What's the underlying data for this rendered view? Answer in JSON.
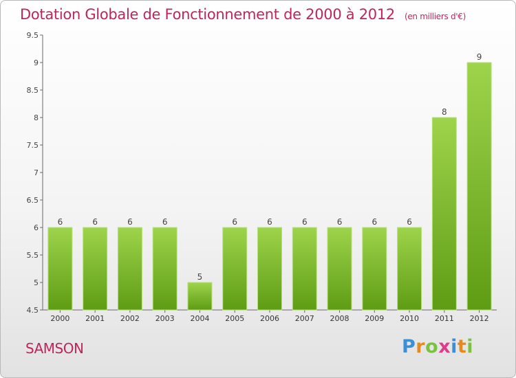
{
  "header": {
    "title": "Dotation Globale de Fonctionnement de 2000 à 2012",
    "unit": "(en milliers d'€)"
  },
  "footer": {
    "commune": "SAMSON",
    "logo_letters": [
      "P",
      "r",
      "o",
      "x",
      "i",
      "t",
      "i"
    ],
    "logo_colors": [
      "#3b8ed8",
      "#e48a1e",
      "#7cc242",
      "#e03a8a",
      "#3b8ed8",
      "#e48a1e",
      "#7cc242"
    ]
  },
  "chart_data": {
    "type": "bar",
    "title": "Dotation Globale de Fonctionnement de 2000 à 2012",
    "xlabel": "",
    "ylabel": "",
    "categories": [
      "2000",
      "2001",
      "2002",
      "2003",
      "2004",
      "2005",
      "2006",
      "2007",
      "2008",
      "2009",
      "2010",
      "2011",
      "2012"
    ],
    "values": [
      6,
      6,
      6,
      6,
      5,
      6,
      6,
      6,
      6,
      6,
      6,
      8,
      9
    ],
    "ylim": [
      4.5,
      9.5
    ],
    "yticks": [
      "4.5",
      "5",
      "5.5",
      "6",
      "6.5",
      "7",
      "7.5",
      "8",
      "8.5",
      "9",
      "9.5"
    ],
    "grid": false,
    "bar_color": "#7cbf32"
  }
}
